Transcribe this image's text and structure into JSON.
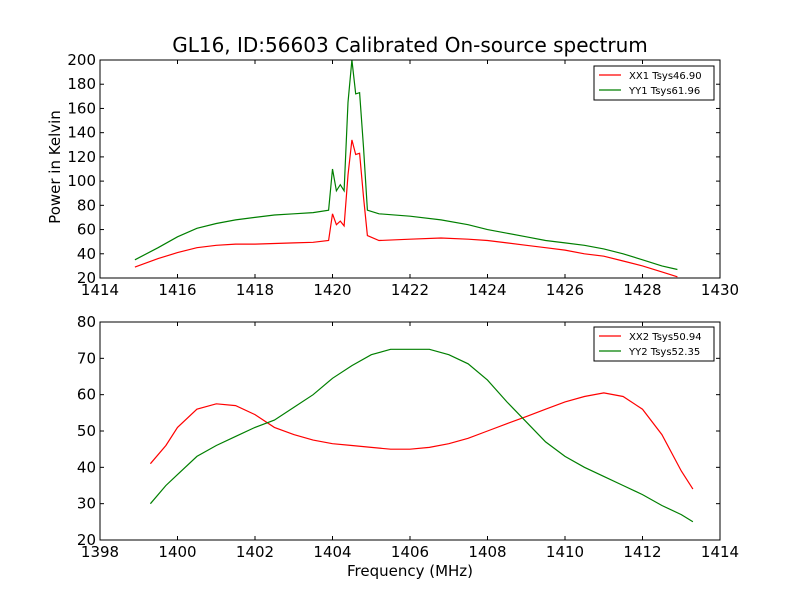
{
  "title": "GL16, ID:56603 Calibrated On-source spectrum",
  "colors": {
    "XX": "#ff0000",
    "YY": "#007f00",
    "axes": "#000000",
    "background": "#ffffff"
  },
  "chart_data": [
    {
      "type": "line",
      "title": "GL16, ID:56603 Calibrated On-source spectrum",
      "xlabel": "",
      "ylabel": "Power in Kelvin",
      "xlim": [
        1414,
        1430
      ],
      "ylim": [
        20,
        200
      ],
      "xticks": [
        1414,
        1416,
        1418,
        1420,
        1422,
        1424,
        1426,
        1428,
        1430
      ],
      "yticks": [
        20,
        40,
        60,
        80,
        100,
        120,
        140,
        160,
        180,
        200
      ],
      "grid": false,
      "legend_position": "top-right",
      "series": [
        {
          "name": "XX1 Tsys46.90",
          "color": "#ff0000",
          "x": [
            1414.9,
            1415.5,
            1416.0,
            1416.5,
            1417.0,
            1417.5,
            1418.0,
            1418.5,
            1419.0,
            1419.5,
            1419.9,
            1420.0,
            1420.1,
            1420.2,
            1420.3,
            1420.4,
            1420.5,
            1420.6,
            1420.7,
            1420.8,
            1420.9,
            1421.2,
            1422.0,
            1422.8,
            1423.5,
            1424.0,
            1424.5,
            1425.0,
            1425.5,
            1426.0,
            1426.5,
            1427.0,
            1427.5,
            1428.0,
            1428.5,
            1428.9
          ],
          "y": [
            29,
            36,
            41,
            45,
            47,
            48,
            48,
            48.5,
            49,
            49.5,
            51,
            73,
            64,
            67,
            63,
            105,
            134,
            122,
            123,
            87,
            55,
            51,
            52,
            53,
            52,
            51,
            49,
            47,
            45,
            43,
            40,
            38,
            34,
            30,
            25,
            21
          ]
        },
        {
          "name": "YY1 Tsys61.96",
          "color": "#007f00",
          "x": [
            1414.9,
            1415.5,
            1416.0,
            1416.5,
            1417.0,
            1417.5,
            1418.0,
            1418.5,
            1419.0,
            1419.5,
            1419.9,
            1420.0,
            1420.1,
            1420.2,
            1420.3,
            1420.4,
            1420.5,
            1420.6,
            1420.7,
            1420.8,
            1420.9,
            1421.2,
            1422.0,
            1422.8,
            1423.5,
            1424.0,
            1424.5,
            1425.0,
            1425.5,
            1426.0,
            1426.5,
            1427.0,
            1427.5,
            1428.0,
            1428.5,
            1428.9
          ],
          "y": [
            35,
            45,
            54,
            61,
            65,
            68,
            70,
            72,
            73,
            74,
            76,
            110,
            92,
            97,
            92,
            165,
            200,
            172,
            173,
            128,
            76,
            73,
            71,
            68,
            64,
            60,
            57,
            54,
            51,
            49,
            47,
            44,
            40,
            35,
            30,
            27
          ]
        }
      ]
    },
    {
      "type": "line",
      "title": "",
      "xlabel": "Frequency (MHz)",
      "ylabel": "",
      "xlim": [
        1398,
        1414
      ],
      "ylim": [
        20,
        80
      ],
      "xticks": [
        1398,
        1400,
        1402,
        1404,
        1406,
        1408,
        1410,
        1412,
        1414
      ],
      "yticks": [
        20,
        30,
        40,
        50,
        60,
        70,
        80
      ],
      "grid": false,
      "legend_position": "top-right",
      "series": [
        {
          "name": "XX2 Tsys50.94",
          "color": "#ff0000",
          "x": [
            1399.3,
            1399.7,
            1400.0,
            1400.5,
            1401.0,
            1401.5,
            1402.0,
            1402.5,
            1403.0,
            1403.5,
            1404.0,
            1404.5,
            1405.0,
            1405.5,
            1406.0,
            1406.5,
            1407.0,
            1407.5,
            1408.0,
            1408.5,
            1409.0,
            1409.5,
            1410.0,
            1410.5,
            1411.0,
            1411.5,
            1412.0,
            1412.5,
            1413.0,
            1413.3
          ],
          "y": [
            41,
            46,
            51,
            56,
            57.5,
            57,
            54.5,
            51,
            49,
            47.5,
            46.5,
            46,
            45.5,
            45,
            45,
            45.5,
            46.5,
            48,
            50,
            52,
            54,
            56,
            58,
            59.5,
            60.5,
            59.5,
            56,
            49,
            39,
            34
          ]
        },
        {
          "name": "YY2 Tsys52.35",
          "color": "#007f00",
          "x": [
            1399.3,
            1399.7,
            1400.0,
            1400.5,
            1401.0,
            1401.5,
            1402.0,
            1402.5,
            1403.0,
            1403.5,
            1404.0,
            1404.5,
            1405.0,
            1405.5,
            1406.0,
            1406.5,
            1407.0,
            1407.5,
            1408.0,
            1408.5,
            1409.0,
            1409.5,
            1410.0,
            1410.5,
            1411.0,
            1411.5,
            1412.0,
            1412.5,
            1413.0,
            1413.3
          ],
          "y": [
            30,
            35,
            38,
            43,
            46,
            48.5,
            51,
            53,
            56.5,
            60,
            64.5,
            68,
            71,
            72.5,
            72.5,
            72.5,
            71,
            68.5,
            64,
            58,
            52.5,
            47,
            43,
            40,
            37.5,
            35,
            32.5,
            29.5,
            27,
            25
          ]
        }
      ]
    }
  ]
}
